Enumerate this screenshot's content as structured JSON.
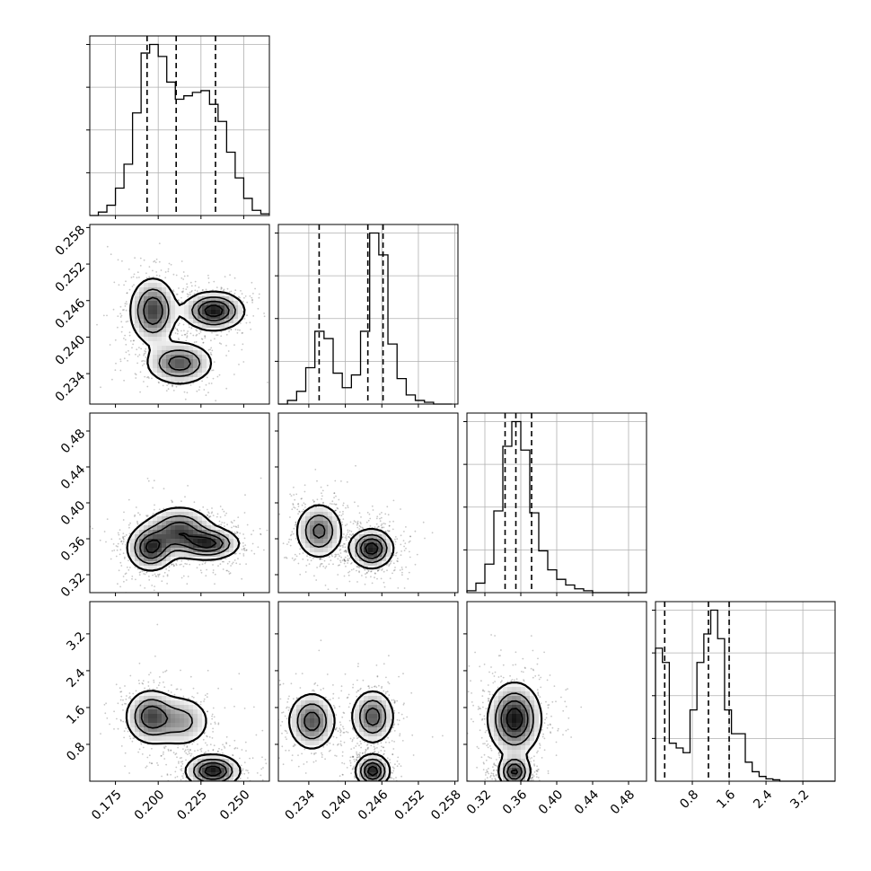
{
  "chart_data": {
    "type": "corner",
    "grid": true,
    "title": "",
    "parameters": [
      {
        "range": [
          0.16,
          0.265
        ],
        "ticks": [
          "0.175",
          "0.200",
          "0.225",
          "0.250"
        ],
        "quantiles": [
          0.1935,
          0.2105,
          0.2335
        ],
        "hist_bins": [
          0.16,
          0.165,
          0.17,
          0.175,
          0.18,
          0.185,
          0.19,
          0.195,
          0.2,
          0.205,
          0.21,
          0.215,
          0.22,
          0.225,
          0.23,
          0.235,
          0.24,
          0.245,
          0.25,
          0.255,
          0.26,
          0.265
        ],
        "hist_counts": [
          0,
          2,
          6,
          16,
          30,
          60,
          95,
          100,
          93,
          78,
          68,
          70,
          72,
          73,
          65,
          55,
          37,
          22,
          10,
          3,
          1
        ]
      },
      {
        "range": [
          0.229,
          0.2585
        ],
        "ticks": [
          "0.234",
          "0.240",
          "0.246",
          "0.252",
          "0.258"
        ],
        "quantiles": [
          0.2357,
          0.2437,
          0.2462
        ],
        "hist_bins": [
          0.229,
          0.2305,
          0.232,
          0.2335,
          0.235,
          0.2365,
          0.238,
          0.2395,
          0.241,
          0.2425,
          0.244,
          0.2455,
          0.247,
          0.2485,
          0.25,
          0.2515,
          0.253,
          0.2545,
          0.256,
          0.2575
        ],
        "hist_counts": [
          0,
          2,
          7,
          20,
          40,
          36,
          17,
          9,
          16,
          40,
          94,
          82,
          33,
          14,
          5,
          2,
          1,
          0,
          0
        ]
      },
      {
        "range": [
          0.3,
          0.5
        ],
        "ticks": [
          "0.32",
          "0.36",
          "0.40",
          "0.44",
          "0.48"
        ],
        "quantiles": [
          0.3425,
          0.3545,
          0.372
        ],
        "hist_bins": [
          0.3,
          0.31,
          0.32,
          0.33,
          0.34,
          0.35,
          0.36,
          0.37,
          0.38,
          0.39,
          0.4,
          0.41,
          0.42,
          0.43,
          0.44,
          0.45,
          0.46,
          0.47,
          0.48,
          0.49,
          0.5
        ],
        "hist_counts": [
          1,
          5,
          15,
          43,
          77,
          90,
          75,
          42,
          22,
          12,
          7,
          4,
          2,
          1,
          0,
          0,
          0,
          0,
          0,
          0
        ]
      },
      {
        "range": [
          0.0,
          3.9
        ],
        "ticks": [
          "0.8",
          "1.6",
          "2.4",
          "3.2"
        ],
        "quantiles": [
          0.2,
          1.15,
          1.6
        ],
        "hist_bins": [
          0.0,
          0.15,
          0.3,
          0.45,
          0.6,
          0.75,
          0.9,
          1.05,
          1.2,
          1.35,
          1.5,
          1.65,
          1.8,
          1.95,
          2.1,
          2.25,
          2.4,
          2.55,
          2.7,
          2.85,
          3.0,
          3.15,
          3.3,
          3.45,
          3.6,
          3.75,
          3.9
        ],
        "hist_counts": [
          28,
          25,
          8,
          7,
          6,
          15,
          25,
          31,
          36,
          30,
          15,
          10,
          10,
          4,
          2,
          1,
          0.5,
          0.3,
          0,
          0,
          0,
          0,
          0,
          0,
          0,
          0
        ]
      }
    ],
    "pairs": [
      {
        "row": 1,
        "col": 0,
        "modes": [
          {
            "x": 0.197,
            "y": 0.2443,
            "sx": 0.007,
            "sy": 0.0028,
            "w": 1.0
          },
          {
            "x": 0.2325,
            "y": 0.2443,
            "sx": 0.009,
            "sy": 0.0016,
            "w": 1.2
          },
          {
            "x": 0.2125,
            "y": 0.2357,
            "sx": 0.01,
            "sy": 0.0018,
            "w": 0.9
          }
        ]
      },
      {
        "row": 2,
        "col": 0,
        "modes": [
          {
            "x": 0.1955,
            "y": 0.3495,
            "sx": 0.007,
            "sy": 0.013,
            "w": 1.0
          },
          {
            "x": 0.23,
            "y": 0.3545,
            "sx": 0.009,
            "sy": 0.009,
            "w": 1.0
          },
          {
            "x": 0.2125,
            "y": 0.3685,
            "sx": 0.01,
            "sy": 0.014,
            "w": 0.9
          }
        ]
      },
      {
        "row": 2,
        "col": 1,
        "modes": [
          {
            "x": 0.2357,
            "y": 0.3685,
            "sx": 0.002,
            "sy": 0.016,
            "w": 0.9
          },
          {
            "x": 0.2443,
            "y": 0.349,
            "sx": 0.0018,
            "sy": 0.011,
            "w": 1.3
          }
        ]
      },
      {
        "row": 3,
        "col": 0,
        "modes": [
          {
            "x": 0.1955,
            "y": 1.4,
            "sx": 0.0075,
            "sy": 0.3,
            "w": 1.0
          },
          {
            "x": 0.214,
            "y": 1.3,
            "sx": 0.009,
            "sy": 0.3,
            "w": 0.6
          },
          {
            "x": 0.232,
            "y": 0.22,
            "sx": 0.008,
            "sy": 0.18,
            "w": 1.3
          }
        ]
      },
      {
        "row": 3,
        "col": 1,
        "modes": [
          {
            "x": 0.2345,
            "y": 1.3,
            "sx": 0.002,
            "sy": 0.32,
            "w": 0.9
          },
          {
            "x": 0.2445,
            "y": 1.4,
            "sx": 0.0018,
            "sy": 0.3,
            "w": 0.9
          },
          {
            "x": 0.2445,
            "y": 0.22,
            "sx": 0.0014,
            "sy": 0.18,
            "w": 1.2
          }
        ]
      },
      {
        "row": 3,
        "col": 2,
        "modes": [
          {
            "x": 0.353,
            "y": 1.35,
            "sx": 0.015,
            "sy": 0.4,
            "w": 1.0
          },
          {
            "x": 0.353,
            "y": 0.2,
            "sx": 0.009,
            "sy": 0.18,
            "w": 0.9
          }
        ]
      }
    ]
  }
}
